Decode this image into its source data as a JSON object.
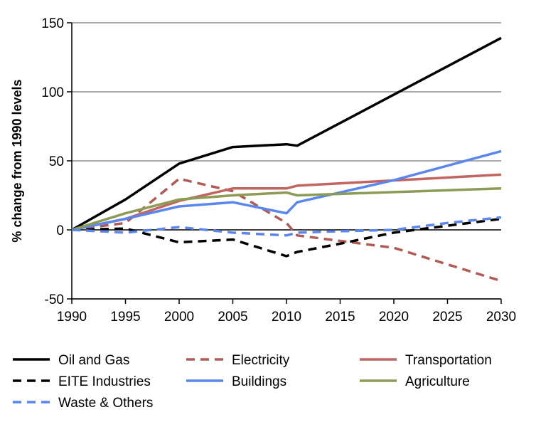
{
  "chart_data": {
    "type": "line",
    "title": "",
    "xlabel": "",
    "ylabel": "% change from 1990 levels",
    "xlim": [
      1990,
      2030
    ],
    "ylim": [
      -50,
      150
    ],
    "x_ticks": [
      "1990",
      "1995",
      "2000",
      "2005",
      "2010",
      "2015",
      "2020",
      "2025",
      "2030"
    ],
    "y_ticks": [
      "150",
      "100",
      "50",
      "0",
      "-50"
    ],
    "grid": "horizontal",
    "legend_position": "bottom",
    "series": [
      {
        "name": "Oil and Gas",
        "color": "#000000",
        "dash": "solid",
        "x": [
          1990,
          1995,
          2000,
          2005,
          2010,
          2011,
          2030
        ],
        "y": [
          0,
          22,
          48,
          60,
          62,
          61,
          139
        ]
      },
      {
        "name": "Electricity",
        "color": "#b05b55",
        "dash": "dashed",
        "x": [
          1990,
          1995,
          2000,
          2005,
          2010,
          2011,
          2015,
          2020,
          2030
        ],
        "y": [
          0,
          5,
          37,
          28,
          5,
          -4,
          -8,
          -13,
          -37
        ]
      },
      {
        "name": "Transportation",
        "color": "#c26560",
        "dash": "solid",
        "x": [
          1990,
          1995,
          2000,
          2005,
          2010,
          2011,
          2030
        ],
        "y": [
          0,
          8,
          21,
          30,
          30,
          32,
          40
        ]
      },
      {
        "name": "EITE Industries",
        "color": "#000000",
        "dash": "dashed",
        "x": [
          1990,
          1995,
          2000,
          2005,
          2010,
          2011,
          2015,
          2020,
          2025,
          2030
        ],
        "y": [
          0,
          1,
          -9,
          -7,
          -19,
          -16,
          -10,
          -2,
          3,
          8
        ]
      },
      {
        "name": "Buildings",
        "color": "#5b86ee",
        "dash": "solid",
        "x": [
          1990,
          1995,
          2000,
          2005,
          2010,
          2011,
          2020,
          2030
        ],
        "y": [
          0,
          8,
          17,
          20,
          12,
          20,
          36,
          57
        ]
      },
      {
        "name": "Agriculture",
        "color": "#8c9c55",
        "dash": "solid",
        "x": [
          1990,
          1995,
          2000,
          2005,
          2010,
          2011,
          2030
        ],
        "y": [
          0,
          12,
          22,
          25,
          27,
          25,
          30
        ]
      },
      {
        "name": "Waste & Others",
        "color": "#5b86ee",
        "dash": "dashed",
        "x": [
          1990,
          1995,
          2000,
          2005,
          2010,
          2011,
          2015,
          2020,
          2025,
          2030
        ],
        "y": [
          0,
          -2,
          2,
          -2,
          -4,
          -2,
          -1,
          0,
          5,
          9
        ]
      }
    ]
  }
}
